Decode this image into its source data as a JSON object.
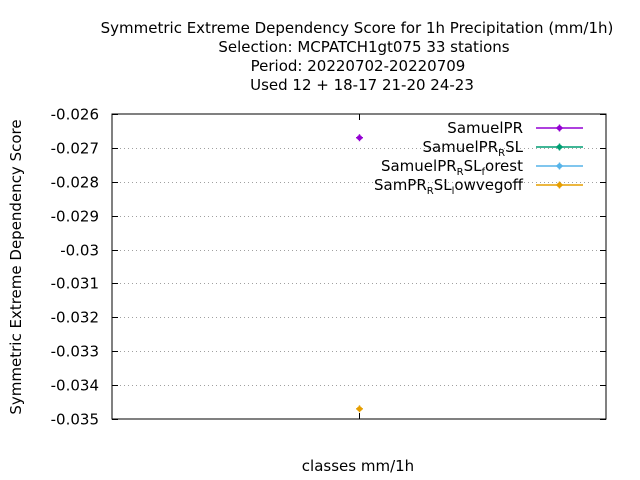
{
  "chart_data": {
    "type": "scatter",
    "title_lines": [
      "Symmetric Extreme Dependency Score  for 1h Precipitation (mm/1h)",
      "Selection: MCPATCH1gt075     33 stations",
      "Period: 20220702-20220709",
      "Used  12 + 18-17 21-20 24-23"
    ],
    "xlabel": "classes mm/1h",
    "ylabel": "Symmetric Extreme Dependency Score",
    "ylim": [
      -0.035,
      -0.026
    ],
    "yticks": [
      "-0.026",
      "-0.027",
      "-0.028",
      "-0.029",
      "-0.03",
      "-0.031",
      "-0.032",
      "-0.033",
      "-0.034",
      "-0.035"
    ],
    "grid": true,
    "legend_position": "top-right",
    "series": [
      {
        "legend": [
          {
            "t": "SamuelPR"
          }
        ],
        "color": "#9400d3",
        "points": [
          -0.0267
        ]
      },
      {
        "legend": [
          {
            "t": "SamuelPR"
          },
          {
            "t": "R",
            "sub": true
          },
          {
            "t": "SL"
          }
        ],
        "color": "#009e73",
        "points": []
      },
      {
        "legend": [
          {
            "t": "SamuelPR"
          },
          {
            "t": "R",
            "sub": true
          },
          {
            "t": "SL"
          },
          {
            "t": "f",
            "sub": true
          },
          {
            "t": "orest"
          }
        ],
        "color": "#56b4e9",
        "points": []
      },
      {
        "legend": [
          {
            "t": "SamPR"
          },
          {
            "t": "R",
            "sub": true
          },
          {
            "t": "SL"
          },
          {
            "t": "l",
            "sub": true
          },
          {
            "t": "owvegoff"
          }
        ],
        "color": "#e69f00",
        "points": [
          -0.0347
        ]
      }
    ]
  }
}
